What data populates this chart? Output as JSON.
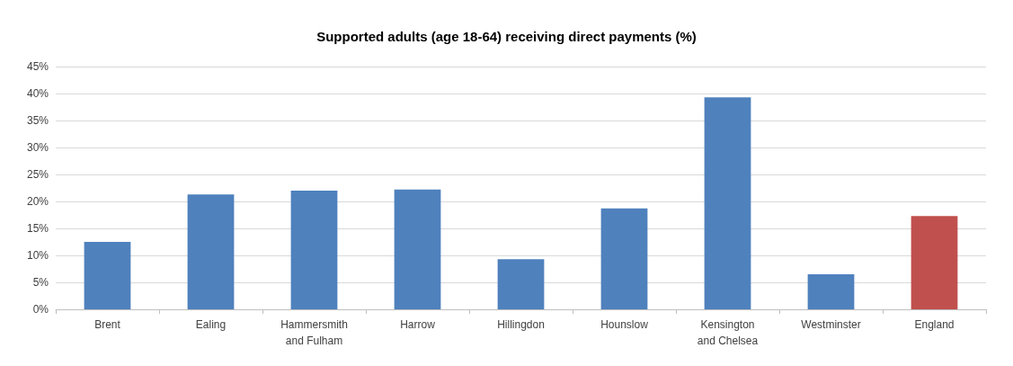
{
  "chart_data": {
    "type": "bar",
    "title": "Supported adults (age 18-64) receiving direct payments (%)",
    "categories": [
      "Brent",
      "Ealing",
      "Hammersmith\nand Fulham",
      "Harrow",
      "Hillingdon",
      "Hounslow",
      "Kensington\nand Chelsea",
      "Westminster",
      "England"
    ],
    "values": [
      12.5,
      21.3,
      22,
      22.2,
      9.3,
      18.7,
      39.3,
      6.5,
      17.3
    ],
    "colors": [
      "#4f81bd",
      "#4f81bd",
      "#4f81bd",
      "#4f81bd",
      "#4f81bd",
      "#4f81bd",
      "#4f81bd",
      "#4f81bd",
      "#c0504d"
    ],
    "ylim": [
      0,
      45
    ],
    "yticks": [
      {
        "value": 0,
        "label": "0%"
      },
      {
        "value": 5,
        "label": "5%"
      },
      {
        "value": 10,
        "label": "10%"
      },
      {
        "value": 15,
        "label": "15%"
      },
      {
        "value": 20,
        "label": "20%"
      },
      {
        "value": 25,
        "label": "25%"
      },
      {
        "value": 30,
        "label": "30%"
      },
      {
        "value": 35,
        "label": "35%"
      },
      {
        "value": 40,
        "label": "40%"
      },
      {
        "value": 45,
        "label": "45%"
      }
    ],
    "grid": "y"
  }
}
